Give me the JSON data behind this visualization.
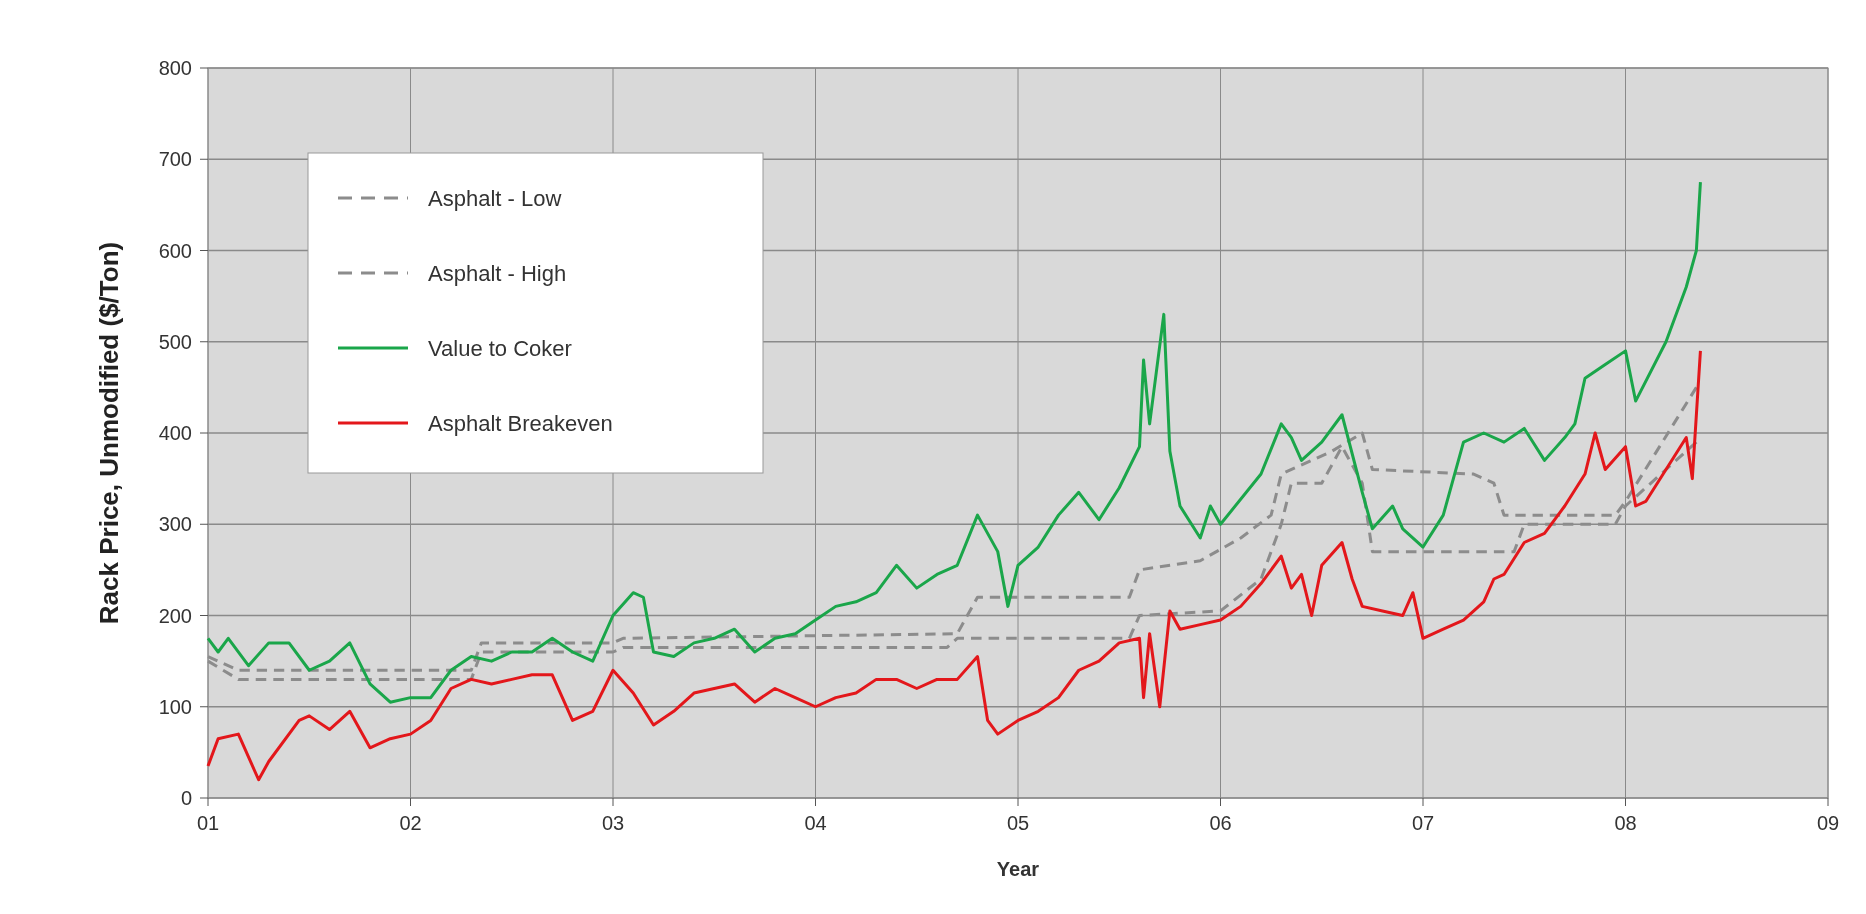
{
  "chart_data": {
    "type": "line",
    "xlabel": "Year",
    "ylabel": "Rack Price, Unmodified ($/Ton)",
    "xlim": [
      1,
      9
    ],
    "xticks": [
      {
        "value": 1,
        "label": "01"
      },
      {
        "value": 2,
        "label": "02"
      },
      {
        "value": 3,
        "label": "03"
      },
      {
        "value": 4,
        "label": "04"
      },
      {
        "value": 5,
        "label": "05"
      },
      {
        "value": 6,
        "label": "06"
      },
      {
        "value": 7,
        "label": "07"
      },
      {
        "value": 8,
        "label": "08"
      },
      {
        "value": 9,
        "label": "09"
      }
    ],
    "ylim": [
      0,
      800
    ],
    "yticks": [
      0,
      100,
      200,
      300,
      400,
      500,
      600,
      700,
      800
    ],
    "grid": true,
    "legend": "top left",
    "series": [
      {
        "name": "Asphalt - Low",
        "color": "#8c8c8c",
        "line_style": "dashed",
        "x": [
          1.0,
          1.15,
          2.3,
          2.35,
          3.0,
          3.05,
          4.65,
          4.7,
          5.55,
          5.6,
          6.0,
          6.2,
          6.3,
          6.35,
          6.5,
          6.6,
          6.7,
          6.75,
          7.45,
          7.5,
          7.95,
          8.0,
          8.35
        ],
        "values": [
          150,
          130,
          130,
          160,
          160,
          165,
          165,
          175,
          175,
          200,
          205,
          240,
          300,
          345,
          345,
          385,
          345,
          270,
          270,
          300,
          300,
          320,
          390
        ]
      },
      {
        "name": "Asphalt - High",
        "color": "#8c8c8c",
        "line_style": "dashed",
        "x": [
          1.0,
          1.15,
          2.3,
          2.35,
          3.0,
          3.05,
          4.7,
          4.8,
          5.55,
          5.6,
          5.9,
          6.1,
          6.25,
          6.3,
          6.55,
          6.7,
          6.75,
          7.25,
          7.35,
          7.4,
          7.95,
          8.0,
          8.35
        ],
        "values": [
          155,
          140,
          140,
          170,
          170,
          175,
          180,
          220,
          220,
          250,
          260,
          285,
          310,
          355,
          380,
          400,
          360,
          355,
          345,
          310,
          310,
          325,
          450
        ]
      },
      {
        "name": "Value to Coker",
        "color": "#1aa64a",
        "line_style": "solid",
        "x": [
          1.0,
          1.05,
          1.1,
          1.2,
          1.3,
          1.4,
          1.5,
          1.6,
          1.7,
          1.8,
          1.9,
          2.0,
          2.1,
          2.2,
          2.3,
          2.4,
          2.5,
          2.6,
          2.7,
          2.8,
          2.9,
          3.0,
          3.1,
          3.15,
          3.2,
          3.3,
          3.4,
          3.5,
          3.6,
          3.7,
          3.8,
          3.9,
          4.0,
          4.1,
          4.2,
          4.3,
          4.4,
          4.5,
          4.6,
          4.7,
          4.8,
          4.9,
          4.95,
          5.0,
          5.1,
          5.2,
          5.3,
          5.4,
          5.5,
          5.6,
          5.62,
          5.65,
          5.72,
          5.75,
          5.8,
          5.9,
          5.95,
          6.0,
          6.2,
          6.3,
          6.35,
          6.4,
          6.5,
          6.6,
          6.7,
          6.75,
          6.85,
          6.9,
          7.0,
          7.1,
          7.2,
          7.3,
          7.4,
          7.5,
          7.6,
          7.7,
          7.75,
          7.8,
          7.9,
          8.0,
          8.05,
          8.2,
          8.3,
          8.35,
          8.37
        ],
        "values": [
          175,
          160,
          175,
          145,
          170,
          170,
          140,
          150,
          170,
          125,
          105,
          110,
          110,
          140,
          155,
          150,
          160,
          160,
          175,
          160,
          150,
          200,
          225,
          220,
          160,
          155,
          170,
          175,
          185,
          160,
          175,
          180,
          195,
          210,
          215,
          225,
          255,
          230,
          245,
          255,
          310,
          270,
          210,
          255,
          275,
          310,
          335,
          305,
          340,
          385,
          480,
          410,
          530,
          380,
          320,
          285,
          320,
          300,
          355,
          410,
          395,
          370,
          390,
          420,
          335,
          295,
          320,
          295,
          275,
          310,
          390,
          400,
          390,
          405,
          370,
          395,
          410,
          460,
          475,
          490,
          435,
          500,
          560,
          600,
          675
        ]
      },
      {
        "name": "Asphalt Breakeven",
        "color": "#e3171b",
        "line_style": "solid",
        "x": [
          1.0,
          1.05,
          1.15,
          1.25,
          1.3,
          1.45,
          1.5,
          1.6,
          1.7,
          1.8,
          1.9,
          2.0,
          2.1,
          2.2,
          2.3,
          2.4,
          2.5,
          2.6,
          2.7,
          2.8,
          2.9,
          3.0,
          3.1,
          3.2,
          3.3,
          3.4,
          3.5,
          3.6,
          3.7,
          3.8,
          3.9,
          4.0,
          4.1,
          4.2,
          4.3,
          4.4,
          4.5,
          4.6,
          4.7,
          4.8,
          4.85,
          4.9,
          5.0,
          5.1,
          5.2,
          5.3,
          5.4,
          5.5,
          5.6,
          5.62,
          5.65,
          5.7,
          5.75,
          5.8,
          5.9,
          6.0,
          6.1,
          6.2,
          6.3,
          6.35,
          6.4,
          6.45,
          6.5,
          6.6,
          6.65,
          6.7,
          6.8,
          6.9,
          6.95,
          7.0,
          7.1,
          7.2,
          7.3,
          7.35,
          7.4,
          7.5,
          7.6,
          7.7,
          7.8,
          7.85,
          7.9,
          8.0,
          8.05,
          8.1,
          8.2,
          8.3,
          8.33,
          8.37
        ],
        "values": [
          35,
          65,
          70,
          20,
          40,
          85,
          90,
          75,
          95,
          55,
          65,
          70,
          85,
          120,
          130,
          125,
          130,
          135,
          135,
          85,
          95,
          140,
          115,
          80,
          95,
          115,
          120,
          125,
          105,
          120,
          110,
          100,
          110,
          115,
          130,
          130,
          120,
          130,
          130,
          155,
          85,
          70,
          85,
          95,
          110,
          140,
          150,
          170,
          175,
          110,
          180,
          100,
          205,
          185,
          190,
          195,
          210,
          235,
          265,
          230,
          245,
          200,
          255,
          280,
          240,
          210,
          205,
          200,
          225,
          175,
          185,
          195,
          215,
          240,
          245,
          280,
          290,
          320,
          355,
          400,
          360,
          385,
          320,
          325,
          360,
          395,
          350,
          490
        ]
      }
    ]
  }
}
